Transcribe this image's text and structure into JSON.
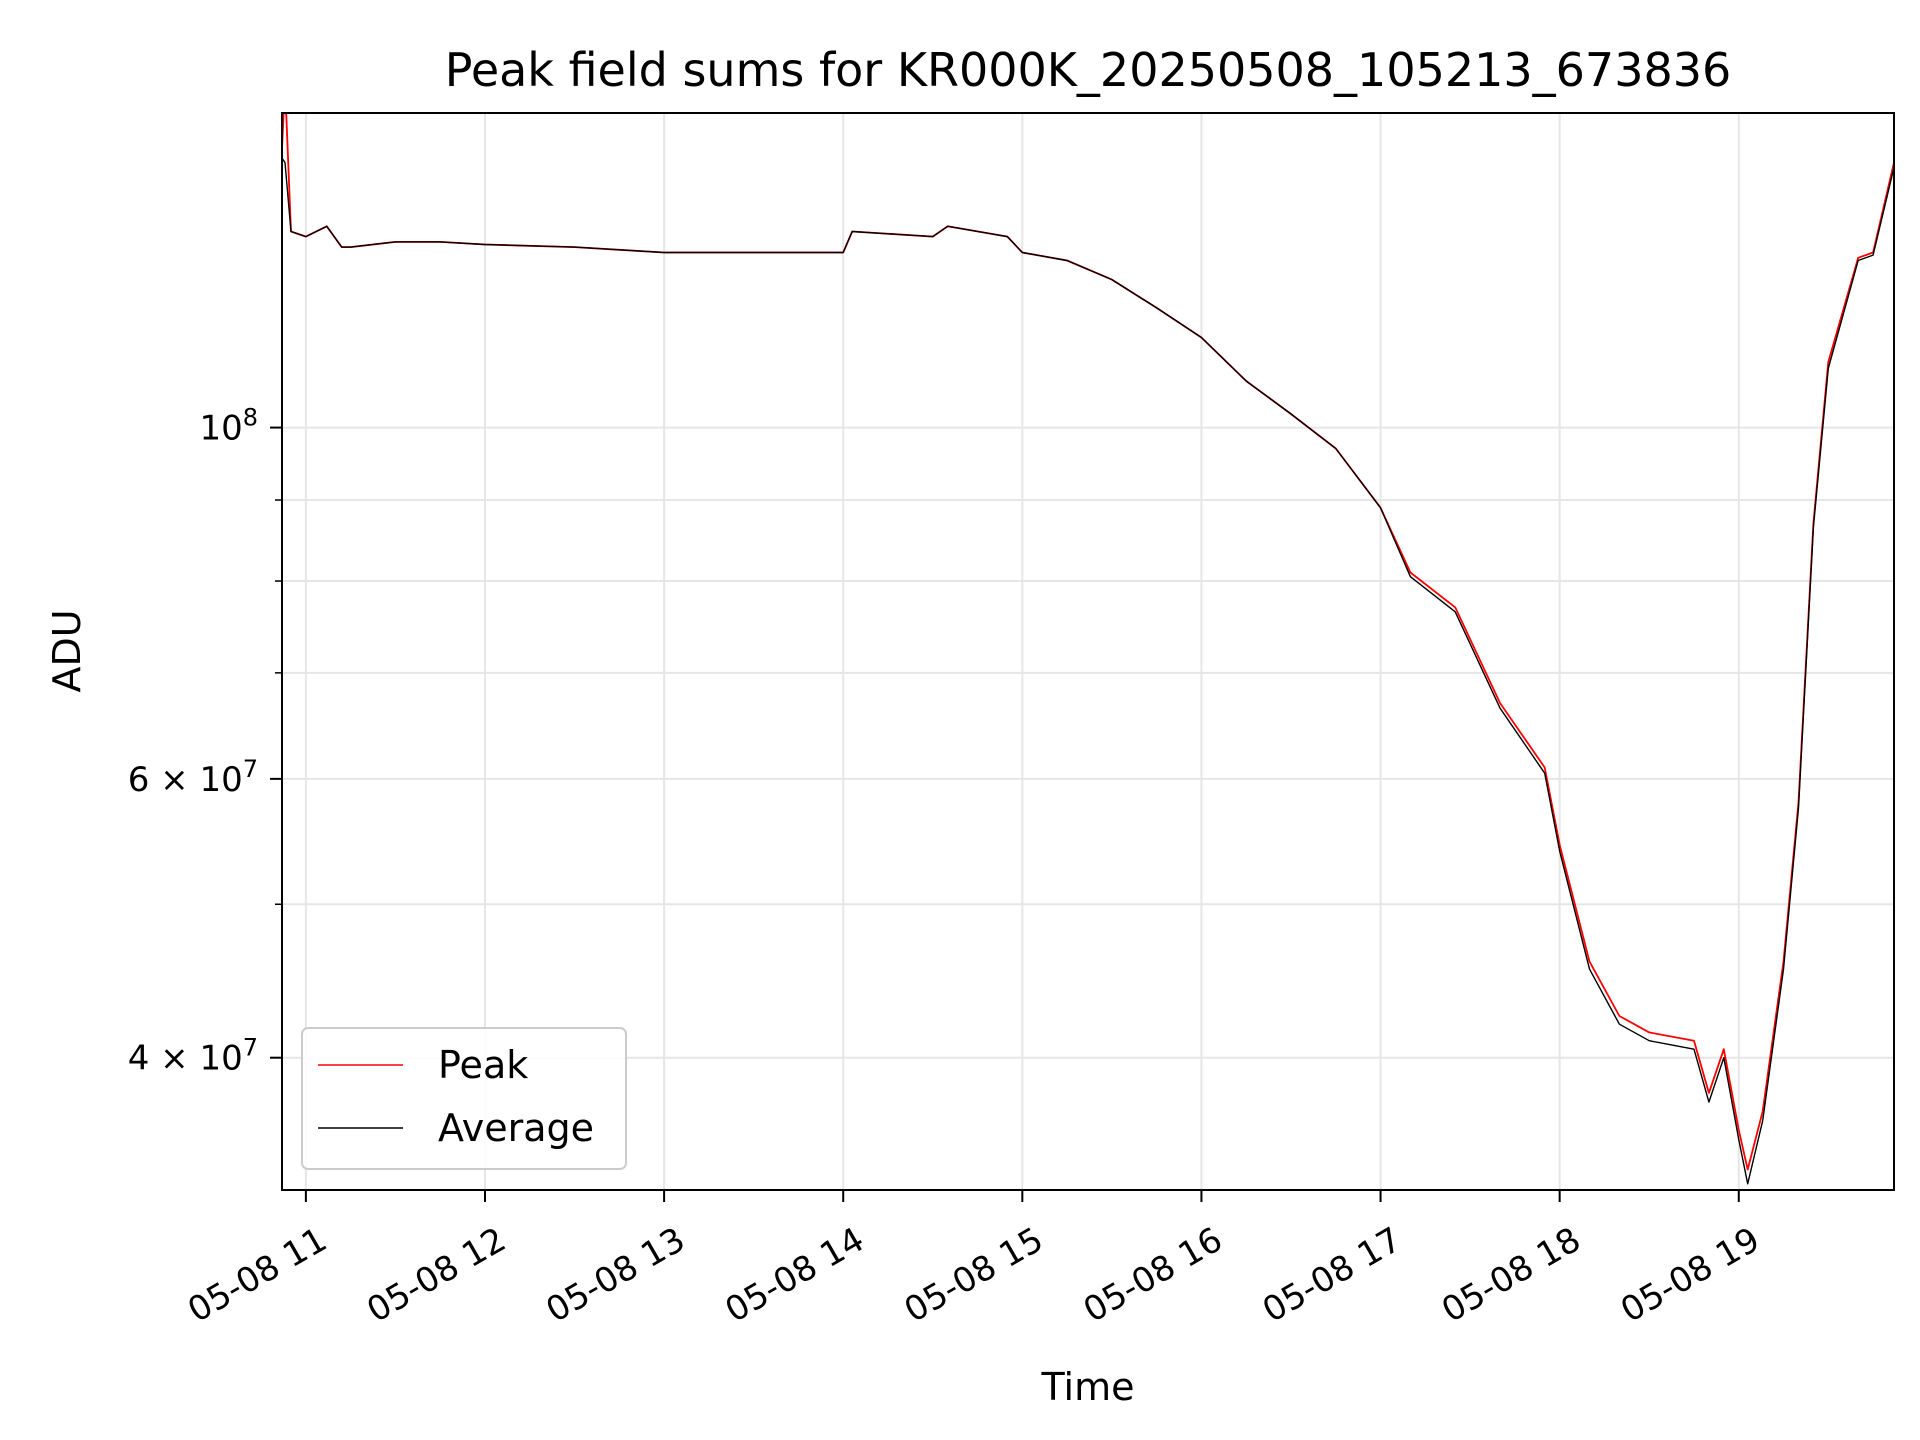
{
  "chart_data": {
    "type": "line",
    "title": "Peak field sums for KR000K_20250508_105213_673836",
    "xlabel": "Time",
    "ylabel": "ADU",
    "yscale": "log",
    "xlim": [
      "2025-05-08 10:52",
      "2025-05-08 19:52"
    ],
    "ylim": [
      33000000,
      158000000
    ],
    "grid": true,
    "legend_position": "lower left",
    "x_ticks": [
      "05-08 11",
      "05-08 12",
      "05-08 13",
      "05-08 14",
      "05-08 15",
      "05-08 16",
      "05-08 17",
      "05-08 18",
      "05-08 19"
    ],
    "y_major_ticks": [
      {
        "value": 100000000,
        "base": "10",
        "exp": "8",
        "mantissa": ""
      },
      {
        "value": 60000000,
        "base": "10",
        "exp": "7",
        "mantissa": "6 × "
      },
      {
        "value": 40000000,
        "base": "10",
        "exp": "7",
        "mantissa": "4 × "
      }
    ],
    "y_minor_ticks": [
      90000000,
      80000000,
      70000000,
      50000000
    ],
    "x": [
      "2025-05-08 10:52",
      "2025-05-08 10:53",
      "2025-05-08 10:55",
      "2025-05-08 11:00",
      "2025-05-08 11:07",
      "2025-05-08 11:12",
      "2025-05-08 11:15",
      "2025-05-08 11:30",
      "2025-05-08 11:45",
      "2025-05-08 12:00",
      "2025-05-08 12:30",
      "2025-05-08 13:00",
      "2025-05-08 13:30",
      "2025-05-08 14:00",
      "2025-05-08 14:03",
      "2025-05-08 14:30",
      "2025-05-08 14:35",
      "2025-05-08 14:55",
      "2025-05-08 15:00",
      "2025-05-08 15:15",
      "2025-05-08 15:30",
      "2025-05-08 15:45",
      "2025-05-08 16:00",
      "2025-05-08 16:15",
      "2025-05-08 16:30",
      "2025-05-08 16:45",
      "2025-05-08 17:00",
      "2025-05-08 17:10",
      "2025-05-08 17:25",
      "2025-05-08 17:40",
      "2025-05-08 17:55",
      "2025-05-08 18:00",
      "2025-05-08 18:10",
      "2025-05-08 18:20",
      "2025-05-08 18:30",
      "2025-05-08 18:45",
      "2025-05-08 18:50",
      "2025-05-08 18:55",
      "2025-05-08 19:00",
      "2025-05-08 19:03",
      "2025-05-08 19:08",
      "2025-05-08 19:15",
      "2025-05-08 19:20",
      "2025-05-08 19:25",
      "2025-05-08 19:30",
      "2025-05-08 19:40",
      "2025-05-08 19:45",
      "2025-05-08 19:52"
    ],
    "series": [
      {
        "name": "Peak",
        "color": "#ff0000",
        "values": [
          150000000,
          165000000,
          133000000,
          132000000,
          134000000,
          130000000,
          130000000,
          131000000,
          131000000,
          130500000,
          130000000,
          129000000,
          129000000,
          129000000,
          133000000,
          132000000,
          134000000,
          132000000,
          129000000,
          127500000,
          124000000,
          119000000,
          114000000,
          107000000,
          102000000,
          97000000,
          89000000,
          81000000,
          77000000,
          67000000,
          61000000,
          54500000,
          46000000,
          42500000,
          41500000,
          41000000,
          38000000,
          40500000,
          36000000,
          34000000,
          37000000,
          46000000,
          58000000,
          87000000,
          110000000,
          128000000,
          129000000,
          147000000
        ]
      },
      {
        "name": "Average",
        "color": "#000000",
        "values": [
          148000000,
          147000000,
          133000000,
          132000000,
          134000000,
          130000000,
          130000000,
          131000000,
          131000000,
          130500000,
          130000000,
          129000000,
          129000000,
          129000000,
          133000000,
          132000000,
          134000000,
          132000000,
          129000000,
          127500000,
          124000000,
          119000000,
          114000000,
          107000000,
          102000000,
          97000000,
          89000000,
          80500000,
          76500000,
          66500000,
          60500000,
          54000000,
          45500000,
          42000000,
          41000000,
          40500000,
          37500000,
          40000000,
          35500000,
          33300000,
          36500000,
          45500000,
          57500000,
          86500000,
          109000000,
          127500000,
          128500000,
          146000000
        ]
      }
    ]
  }
}
